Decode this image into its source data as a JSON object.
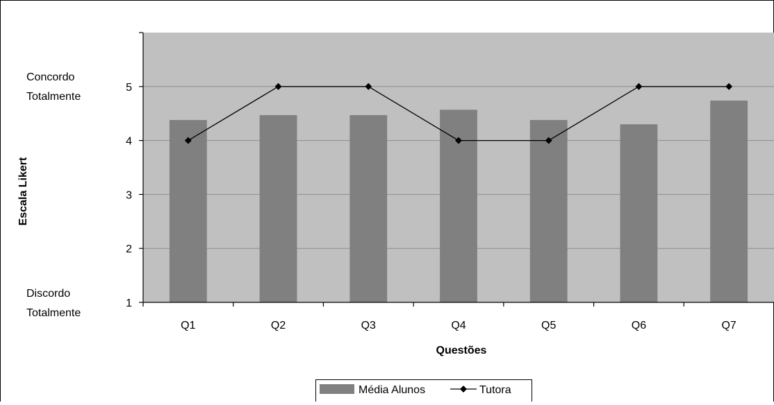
{
  "chart_data": {
    "type": "bar",
    "categories": [
      "Q1",
      "Q2",
      "Q3",
      "Q4",
      "Q5",
      "Q6",
      "Q7"
    ],
    "series": [
      {
        "name": "Média Alunos",
        "kind": "bar",
        "values": [
          4.38,
          4.47,
          4.47,
          4.57,
          4.38,
          4.3,
          4.74
        ]
      },
      {
        "name": "Tutora",
        "kind": "line",
        "values": [
          4,
          5,
          5,
          4,
          4,
          5,
          5
        ]
      }
    ],
    "xlabel": "Questões",
    "ylabel": "Escala Likert",
    "ylim": [
      1,
      6
    ],
    "yticks": [
      1,
      2,
      3,
      4,
      5
    ],
    "y_side_labels": {
      "top": [
        "Concordo",
        "Totalmente"
      ],
      "bottom": [
        "Discordo",
        "Totalmente"
      ]
    },
    "legend": {
      "position": "bottom",
      "entries": [
        "Média Alunos",
        "Tutora"
      ]
    },
    "grid": true,
    "colors": {
      "plot_background": "#c0c0c0",
      "bar": "#808080",
      "line": "#000000",
      "gridline": "#8c8c8c"
    }
  }
}
